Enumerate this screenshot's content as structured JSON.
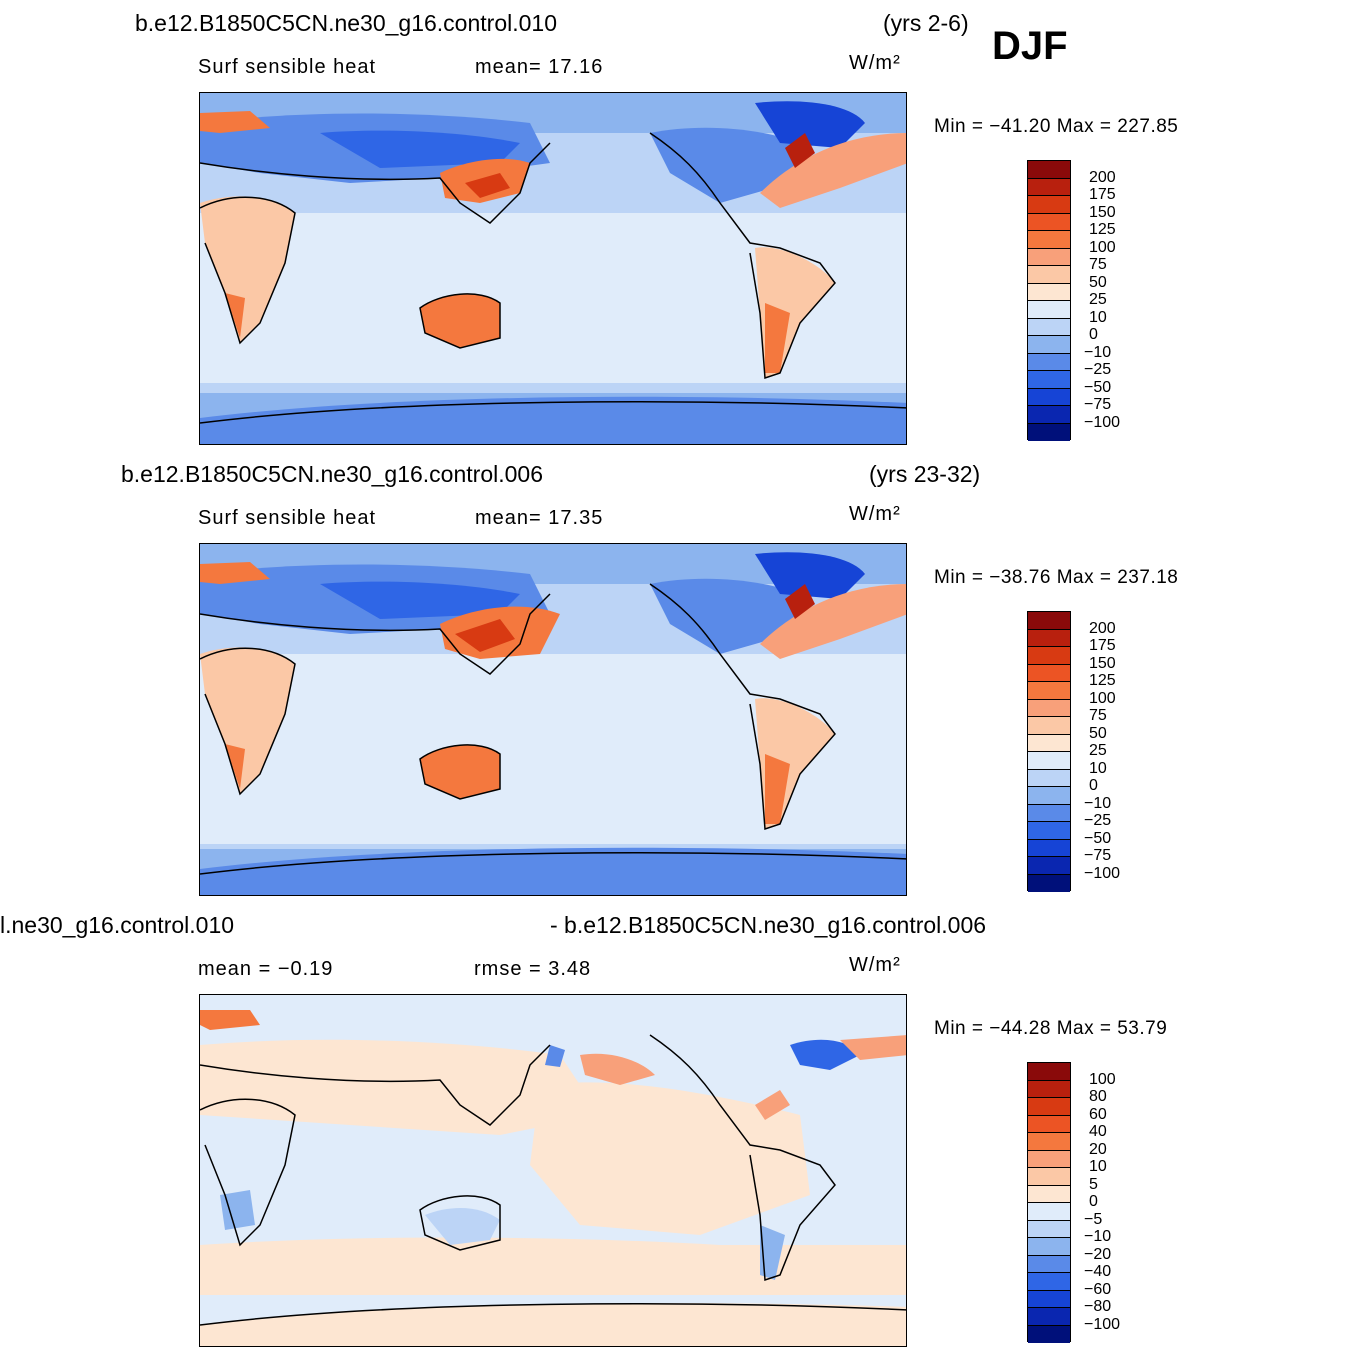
{
  "season": "DJF",
  "units": "W/m²",
  "panels": [
    {
      "header_left": "b.e12.B1850C5CN.ne30_g16.control.010",
      "header_right": "(yrs 2-6)",
      "stat_label": "Surf  sensible  heat",
      "stat2": "mean=   17.16",
      "min_max": "Min  =  −41.20  Max  =  227.85",
      "levels": [
        "200",
        "175",
        "150",
        "125",
        "100",
        "75",
        "50",
        "25",
        "10",
        "0",
        "−10",
        "−25",
        "−50",
        "−75",
        "−100"
      ],
      "colors": [
        "#8a0a0a",
        "#b8200e",
        "#d83a12",
        "#ec5424",
        "#f4783e",
        "#f8a07a",
        "#fbc8a6",
        "#fde6d2",
        "#e0ecfa",
        "#bcd4f6",
        "#8cb4ee",
        "#5a8ae8",
        "#2f66e6",
        "#1644d6",
        "#0a26b0",
        "#00107a"
      ]
    },
    {
      "header_left": "b.e12.B1850C5CN.ne30_g16.control.006",
      "header_right": "(yrs 23-32)",
      "stat_label": "Surf  sensible  heat",
      "stat2": "mean=   17.35",
      "min_max": "Min  =  −38.76  Max  =  237.18",
      "levels": [
        "200",
        "175",
        "150",
        "125",
        "100",
        "75",
        "50",
        "25",
        "10",
        "0",
        "−10",
        "−25",
        "−50",
        "−75",
        "−100"
      ],
      "colors": [
        "#8a0a0a",
        "#b8200e",
        "#d83a12",
        "#ec5424",
        "#f4783e",
        "#f8a07a",
        "#fbc8a6",
        "#fde6d2",
        "#e0ecfa",
        "#bcd4f6",
        "#8cb4ee",
        "#5a8ae8",
        "#2f66e6",
        "#1644d6",
        "#0a26b0",
        "#00107a"
      ]
    },
    {
      "header_left": "l.ne30_g16.control.010",
      "header_right": "- b.e12.B1850C5CN.ne30_g16.control.006",
      "stat_label": "mean  =    −0.19",
      "stat2": "rmse  =     3.48",
      "min_max": "Min  =  −44.28  Max  =    53.79",
      "levels": [
        "100",
        "80",
        "60",
        "40",
        "20",
        "10",
        "5",
        "0",
        "−5",
        "−10",
        "−20",
        "−40",
        "−60",
        "−80",
        "−100"
      ],
      "colors": [
        "#8a0a0a",
        "#b8200e",
        "#d83a12",
        "#ec5424",
        "#f4783e",
        "#f8a07a",
        "#fbc8a6",
        "#fde6d2",
        "#e0ecfa",
        "#bcd4f6",
        "#8cb4ee",
        "#5a8ae8",
        "#2f66e6",
        "#1644d6",
        "#0a26b0",
        "#00107a"
      ]
    }
  ]
}
